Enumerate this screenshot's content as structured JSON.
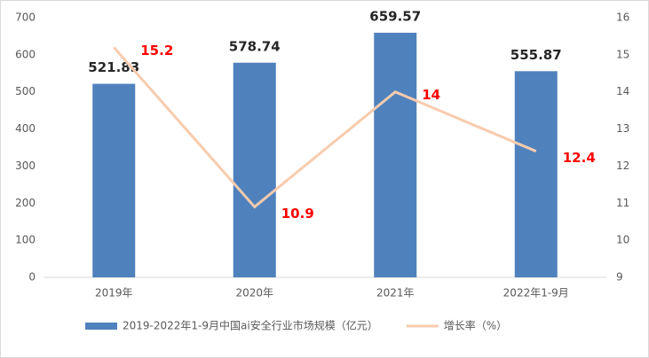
{
  "chart_data": {
    "type": "bar",
    "categories": [
      "2019年",
      "2020年",
      "2021年",
      "2022年1-9月"
    ],
    "series": [
      {
        "name": "2019-2022年1-9月中国ai安全行业市场规模（亿元）",
        "type": "bar",
        "color": "#4f81bd",
        "values": [
          521.83,
          578.74,
          659.57,
          555.87
        ]
      },
      {
        "name": "增长率（%）",
        "type": "line",
        "axis": "y2",
        "color": "#f8cbad",
        "values": [
          15.2,
          10.9,
          14,
          12.4
        ]
      }
    ],
    "ylim": [
      0,
      700
    ],
    "yticks": [
      0,
      100,
      200,
      300,
      400,
      500,
      600,
      700
    ],
    "y2lim": [
      9,
      16
    ],
    "y2ticks": [
      9,
      10,
      11,
      12,
      13,
      14,
      15,
      16
    ],
    "grid": false,
    "legend": "bottom"
  }
}
